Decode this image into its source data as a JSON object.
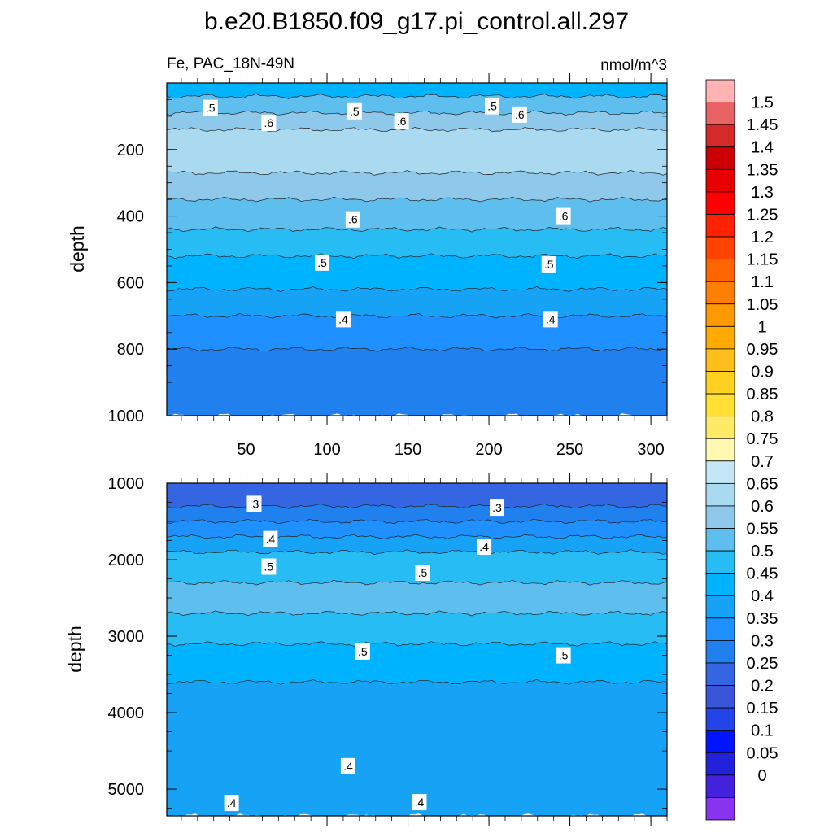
{
  "title": "b.e20.B1850.f09_g17.pi_control.all.297",
  "subtitle_left": "Fe, PAC_18N-49N",
  "subtitle_right": "nmol/m^3",
  "colorbar": {
    "levels": [
      "1.5",
      "1.45",
      "1.4",
      "1.35",
      "1.3",
      "1.25",
      "1.2",
      "1.15",
      "1.1",
      "1.05",
      "1",
      "0.95",
      "0.9",
      "0.85",
      "0.8",
      "0.75",
      "0.7",
      "0.65",
      "0.6",
      "0.55",
      "0.5",
      "0.45",
      "0.4",
      "0.35",
      "0.3",
      "0.25",
      "0.2",
      "0.15",
      "0.1",
      "0.05",
      "0"
    ],
    "colors": [
      "#ffb3b3",
      "#e86464",
      "#d42a2a",
      "#cc0000",
      "#e60000",
      "#ff0000",
      "#ff2200",
      "#ff4400",
      "#ff6600",
      "#ff8000",
      "#ff9900",
      "#ffaa00",
      "#ffbf1a",
      "#ffd21f",
      "#ffe033",
      "#ffea66",
      "#fff8b0",
      "#c4e6f5",
      "#a9daf0",
      "#8ec9ec",
      "#5ebfef",
      "#28bcf5",
      "#00b3ff",
      "#17a3f5",
      "#1e90ff",
      "#2080ee",
      "#3366e0",
      "#3a55d8",
      "#2244e8",
      "#0015ff",
      "#2222dd",
      "#4422dd",
      "#8833ee"
    ]
  },
  "chart_data": [
    {
      "type": "heatmap",
      "panel": "upper",
      "ylabel": "depth",
      "ylim": [
        1000,
        0
      ],
      "yticks": [
        "200",
        "400",
        "600",
        "800",
        "1000"
      ],
      "xlim": [
        1,
        310
      ],
      "xticks": [
        "50",
        "100",
        "150",
        "200",
        "250",
        "300"
      ],
      "contour_labels": [
        {
          "text": ".5",
          "x": 28,
          "y": 75
        },
        {
          "text": ".5",
          "x": 117,
          "y": 85
        },
        {
          "text": ".5",
          "x": 202,
          "y": 70
        },
        {
          "text": ".6",
          "x": 64,
          "y": 120
        },
        {
          "text": ".6",
          "x": 146,
          "y": 115
        },
        {
          "text": ".6",
          "x": 219,
          "y": 95
        },
        {
          "text": ".6",
          "x": 116,
          "y": 410
        },
        {
          "text": ".6",
          "x": 246,
          "y": 400
        },
        {
          "text": ".5",
          "x": 97,
          "y": 540
        },
        {
          "text": ".5",
          "x": 237,
          "y": 545
        },
        {
          "text": ".4",
          "x": 110,
          "y": 710
        },
        {
          "text": ".4",
          "x": 238,
          "y": 710
        }
      ],
      "bands_depth_to_value": [
        {
          "depth_from": 0,
          "depth_to": 40,
          "value": 0.45
        },
        {
          "depth_from": 40,
          "depth_to": 90,
          "value": 0.55
        },
        {
          "depth_from": 90,
          "depth_to": 140,
          "value": 0.6
        },
        {
          "depth_from": 140,
          "depth_to": 270,
          "value": 0.65
        },
        {
          "depth_from": 270,
          "depth_to": 350,
          "value": 0.6
        },
        {
          "depth_from": 350,
          "depth_to": 440,
          "value": 0.55
        },
        {
          "depth_from": 440,
          "depth_to": 520,
          "value": 0.5
        },
        {
          "depth_from": 520,
          "depth_to": 620,
          "value": 0.45
        },
        {
          "depth_from": 620,
          "depth_to": 700,
          "value": 0.4
        },
        {
          "depth_from": 700,
          "depth_to": 800,
          "value": 0.35
        },
        {
          "depth_from": 800,
          "depth_to": 1000,
          "value": 0.3
        }
      ]
    },
    {
      "type": "heatmap",
      "panel": "lower",
      "ylabel": "depth",
      "ylim": [
        5350,
        1000
      ],
      "yticks": [
        "1000",
        "2000",
        "3000",
        "4000",
        "5000"
      ],
      "xlim": [
        1,
        310
      ],
      "contour_labels": [
        {
          "text": ".3",
          "x": 55,
          "y": 1270
        },
        {
          "text": ".3",
          "x": 205,
          "y": 1320
        },
        {
          "text": ".4",
          "x": 65,
          "y": 1730
        },
        {
          "text": ".4",
          "x": 197,
          "y": 1830
        },
        {
          "text": ".5",
          "x": 64,
          "y": 2090
        },
        {
          "text": ".5",
          "x": 159,
          "y": 2170
        },
        {
          "text": ".5",
          "x": 122,
          "y": 3200
        },
        {
          "text": ".5",
          "x": 246,
          "y": 3250
        },
        {
          "text": ".4",
          "x": 113,
          "y": 4700
        },
        {
          "text": ".4",
          "x": 41,
          "y": 5180
        },
        {
          "text": ".4",
          "x": 157,
          "y": 5170
        }
      ],
      "bands_depth_to_value": [
        {
          "depth_from": 1000,
          "depth_to": 1300,
          "value": 0.25
        },
        {
          "depth_from": 1300,
          "depth_to": 1500,
          "value": 0.3
        },
        {
          "depth_from": 1500,
          "depth_to": 1700,
          "value": 0.35
        },
        {
          "depth_from": 1700,
          "depth_to": 1900,
          "value": 0.4
        },
        {
          "depth_from": 1900,
          "depth_to": 2300,
          "value": 0.5
        },
        {
          "depth_from": 2300,
          "depth_to": 2700,
          "value": 0.55
        },
        {
          "depth_from": 2700,
          "depth_to": 3100,
          "value": 0.5
        },
        {
          "depth_from": 3100,
          "depth_to": 3600,
          "value": 0.45
        },
        {
          "depth_from": 3600,
          "depth_to": 5350,
          "value": 0.4
        }
      ]
    }
  ]
}
